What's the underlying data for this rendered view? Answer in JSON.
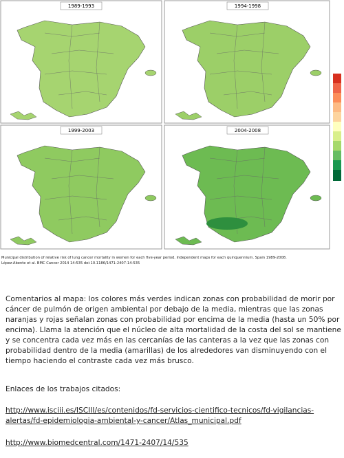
{
  "maps": {
    "panels": [
      {
        "title": "1989-1993"
      },
      {
        "title": "1994-1998"
      },
      {
        "title": "1999-2003"
      },
      {
        "title": "2004-2008"
      }
    ],
    "caption": [
      "Municipal distribution of relative risk of lung cancer mortality in women for each five-year period. Independent maps for each quinquennium. Spain 1989-2008.",
      "López-Abente et al. BMC Cancer 2014 14:535 doi:10.1186/1471-2407-14-535"
    ]
  },
  "comment": {
    "lines": [
      "Comentarios al mapa: los colores más verdes indican zonas con probabilidad de morir por",
      "cáncer de pulmón de origen ambiental por debajo de la media, mientras que las zonas",
      "naranjas y rojas señalan zonas con probabilidad por encima de la media (hasta un 50% por",
      "encima). Llama la atención que el núcleo de alta mortalidad de la costa del sol se mantiene",
      "y se concentra cada vez más en las cercanías de las canteras a la vez que las zonas con",
      "probabilidad dentro de la media (amarillas) de los alrededores van disminuyendo con el",
      "tiempo haciendo el contraste cada vez más brusco."
    ]
  },
  "links": {
    "heading": "Enlaces de los trabajos citados:",
    "first": [
      "http://www.isciii.es/ISCIII/es/contenidos/fd-servicios-cientifico-tecnicos/fd-vigilancias-",
      "alertas/fd-epidemiologia-ambiental-y-cancer/Atlas_municipal.pdf"
    ],
    "second": "http://www.biomedcentral.com/1471-2407/14/535"
  }
}
